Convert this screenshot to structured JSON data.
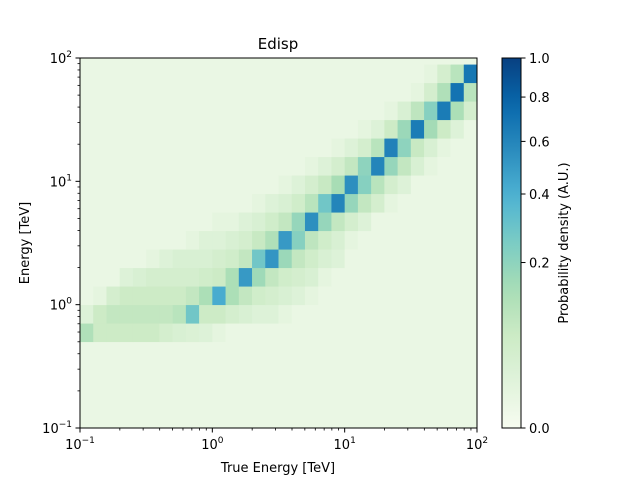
{
  "chart_data": {
    "type": "heatmap",
    "title": "Edisp",
    "xlabel": "True Energy [TeV]",
    "ylabel": "Energy [TeV]",
    "colorbar_label": "Probability density (A.U.)",
    "xscale": "log",
    "yscale": "log",
    "xlim": [
      0.1,
      100
    ],
    "ylim": [
      0.1,
      100
    ],
    "x_ticks": [
      {
        "value": 0.1,
        "base": "10",
        "exp": "−1"
      },
      {
        "value": 1,
        "base": "10",
        "exp": "0"
      },
      {
        "value": 10,
        "base": "10",
        "exp": "1"
      },
      {
        "value": 100,
        "base": "10",
        "exp": "2"
      }
    ],
    "y_ticks": [
      {
        "value": 0.1,
        "base": "10",
        "exp": "−1"
      },
      {
        "value": 1,
        "base": "10",
        "exp": "0"
      },
      {
        "value": 10,
        "base": "10",
        "exp": "1"
      },
      {
        "value": 100,
        "base": "10",
        "exp": "2"
      }
    ],
    "colorbar": {
      "range": [
        0.0,
        1.0
      ],
      "scale": "power-0.5",
      "ticks": [
        "0.0",
        "0.2",
        "0.4",
        "0.6",
        "0.8",
        "1.0"
      ],
      "tick_values": [
        0.0,
        0.2,
        0.4,
        0.6,
        0.8,
        1.0
      ],
      "colormap": "GnBu",
      "colormap_stops": [
        "#f7fcf0",
        "#e0f3db",
        "#ccebc5",
        "#a8ddb5",
        "#7bccc4",
        "#4eb3d3",
        "#2b8cbe",
        "#0868ac",
        "#084081"
      ]
    },
    "grid": false,
    "x_edges_log": [
      -1.0,
      -0.9,
      -0.8,
      -0.7,
      -0.6,
      -0.5,
      -0.4,
      -0.3,
      -0.2,
      -0.1,
      0.0,
      0.1,
      0.2,
      0.3,
      0.4,
      0.5,
      0.6,
      0.7,
      0.8,
      0.9,
      1.0,
      1.1,
      1.2,
      1.3,
      1.4,
      1.5,
      1.6,
      1.7,
      1.8,
      1.9,
      2.0
    ],
    "y_edges_log": [
      -1.0,
      -0.3,
      -0.15,
      0.0,
      0.15,
      0.3,
      0.45,
      0.6,
      0.75,
      0.9,
      1.05,
      1.2,
      1.35,
      1.5,
      1.65,
      1.8,
      1.95,
      2.0
    ],
    "z": [
      [
        0.005,
        0.005,
        0.005,
        0.005,
        0.005,
        0.005,
        0.005,
        0.005,
        0.005,
        0.005,
        0.005,
        0.005,
        0.005,
        0.005,
        0.005,
        0.005,
        0.005,
        0.005,
        0.005,
        0.005,
        0.005,
        0.005,
        0.005,
        0.005,
        0.005,
        0.005,
        0.005,
        0.005,
        0.005,
        0.005
      ],
      [
        0.12,
        0.06,
        0.06,
        0.06,
        0.06,
        0.06,
        0.04,
        0.03,
        0.025,
        0.02,
        0.01,
        0.005,
        0.005,
        0.005,
        0.005,
        0.005,
        0.005,
        0.005,
        0.005,
        0.005,
        0.005,
        0.005,
        0.005,
        0.005,
        0.005,
        0.005,
        0.005,
        0.005,
        0.005,
        0.005
      ],
      [
        0.02,
        0.06,
        0.08,
        0.08,
        0.08,
        0.08,
        0.08,
        0.1,
        0.28,
        0.06,
        0.06,
        0.04,
        0.03,
        0.02,
        0.02,
        0.01,
        0.005,
        0.005,
        0.005,
        0.005,
        0.005,
        0.005,
        0.005,
        0.005,
        0.005,
        0.005,
        0.005,
        0.005,
        0.005,
        0.005
      ],
      [
        0.005,
        0.01,
        0.04,
        0.06,
        0.06,
        0.06,
        0.06,
        0.06,
        0.08,
        0.13,
        0.42,
        0.13,
        0.08,
        0.05,
        0.04,
        0.03,
        0.02,
        0.01,
        0.005,
        0.005,
        0.005,
        0.005,
        0.005,
        0.005,
        0.005,
        0.005,
        0.005,
        0.005,
        0.005,
        0.005
      ],
      [
        0.005,
        0.005,
        0.005,
        0.02,
        0.03,
        0.04,
        0.04,
        0.04,
        0.04,
        0.05,
        0.06,
        0.13,
        0.5,
        0.16,
        0.08,
        0.05,
        0.04,
        0.03,
        0.01,
        0.005,
        0.005,
        0.005,
        0.005,
        0.005,
        0.005,
        0.005,
        0.005,
        0.005,
        0.005,
        0.005
      ],
      [
        0.005,
        0.005,
        0.005,
        0.005,
        0.005,
        0.01,
        0.02,
        0.03,
        0.03,
        0.03,
        0.04,
        0.05,
        0.08,
        0.28,
        0.52,
        0.17,
        0.08,
        0.05,
        0.03,
        0.02,
        0.005,
        0.005,
        0.005,
        0.005,
        0.005,
        0.005,
        0.005,
        0.005,
        0.005,
        0.005
      ],
      [
        0.005,
        0.005,
        0.005,
        0.005,
        0.005,
        0.005,
        0.005,
        0.005,
        0.01,
        0.02,
        0.02,
        0.03,
        0.04,
        0.07,
        0.12,
        0.5,
        0.22,
        0.09,
        0.05,
        0.03,
        0.01,
        0.005,
        0.005,
        0.005,
        0.005,
        0.005,
        0.005,
        0.005,
        0.005,
        0.005
      ],
      [
        0.005,
        0.005,
        0.005,
        0.005,
        0.005,
        0.005,
        0.005,
        0.005,
        0.005,
        0.005,
        0.01,
        0.01,
        0.02,
        0.03,
        0.05,
        0.08,
        0.18,
        0.55,
        0.18,
        0.08,
        0.04,
        0.02,
        0.005,
        0.005,
        0.005,
        0.005,
        0.005,
        0.005,
        0.005,
        0.005
      ],
      [
        0.005,
        0.005,
        0.005,
        0.005,
        0.005,
        0.005,
        0.005,
        0.005,
        0.005,
        0.005,
        0.005,
        0.005,
        0.005,
        0.01,
        0.02,
        0.03,
        0.05,
        0.1,
        0.28,
        0.6,
        0.18,
        0.08,
        0.04,
        0.01,
        0.005,
        0.005,
        0.005,
        0.005,
        0.005,
        0.005
      ],
      [
        0.005,
        0.005,
        0.005,
        0.005,
        0.005,
        0.005,
        0.005,
        0.005,
        0.005,
        0.005,
        0.005,
        0.005,
        0.005,
        0.005,
        0.005,
        0.01,
        0.02,
        0.04,
        0.07,
        0.14,
        0.55,
        0.22,
        0.1,
        0.04,
        0.02,
        0.005,
        0.005,
        0.005,
        0.005,
        0.005
      ],
      [
        0.005,
        0.005,
        0.005,
        0.005,
        0.005,
        0.005,
        0.005,
        0.005,
        0.005,
        0.005,
        0.005,
        0.005,
        0.005,
        0.005,
        0.005,
        0.005,
        0.005,
        0.01,
        0.02,
        0.04,
        0.08,
        0.2,
        0.6,
        0.18,
        0.08,
        0.03,
        0.01,
        0.005,
        0.005,
        0.005
      ],
      [
        0.005,
        0.005,
        0.005,
        0.005,
        0.005,
        0.005,
        0.005,
        0.005,
        0.005,
        0.005,
        0.005,
        0.005,
        0.005,
        0.005,
        0.005,
        0.005,
        0.005,
        0.005,
        0.005,
        0.01,
        0.02,
        0.04,
        0.1,
        0.62,
        0.2,
        0.07,
        0.03,
        0.01,
        0.005,
        0.005
      ],
      [
        0.005,
        0.005,
        0.005,
        0.005,
        0.005,
        0.005,
        0.005,
        0.005,
        0.005,
        0.005,
        0.005,
        0.005,
        0.005,
        0.005,
        0.005,
        0.005,
        0.005,
        0.005,
        0.005,
        0.005,
        0.005,
        0.01,
        0.02,
        0.06,
        0.17,
        0.65,
        0.15,
        0.06,
        0.02,
        0.005
      ],
      [
        0.005,
        0.005,
        0.005,
        0.005,
        0.005,
        0.005,
        0.005,
        0.005,
        0.005,
        0.005,
        0.005,
        0.005,
        0.005,
        0.005,
        0.005,
        0.005,
        0.005,
        0.005,
        0.005,
        0.005,
        0.005,
        0.005,
        0.005,
        0.01,
        0.03,
        0.09,
        0.22,
        0.65,
        0.13,
        0.04
      ],
      [
        0.005,
        0.005,
        0.005,
        0.005,
        0.005,
        0.005,
        0.005,
        0.005,
        0.005,
        0.005,
        0.005,
        0.005,
        0.005,
        0.005,
        0.005,
        0.005,
        0.005,
        0.005,
        0.005,
        0.005,
        0.005,
        0.005,
        0.005,
        0.005,
        0.005,
        0.01,
        0.04,
        0.12,
        0.7,
        0.1
      ],
      [
        0.005,
        0.005,
        0.005,
        0.005,
        0.005,
        0.005,
        0.005,
        0.005,
        0.005,
        0.005,
        0.005,
        0.005,
        0.005,
        0.005,
        0.005,
        0.005,
        0.005,
        0.005,
        0.005,
        0.005,
        0.005,
        0.005,
        0.005,
        0.005,
        0.005,
        0.005,
        0.01,
        0.04,
        0.1,
        0.68
      ],
      [
        0.005,
        0.005,
        0.005,
        0.005,
        0.005,
        0.005,
        0.005,
        0.005,
        0.005,
        0.005,
        0.005,
        0.005,
        0.005,
        0.005,
        0.005,
        0.005,
        0.005,
        0.005,
        0.005,
        0.005,
        0.005,
        0.005,
        0.005,
        0.005,
        0.005,
        0.005,
        0.005,
        0.005,
        0.005,
        0.005
      ]
    ]
  }
}
